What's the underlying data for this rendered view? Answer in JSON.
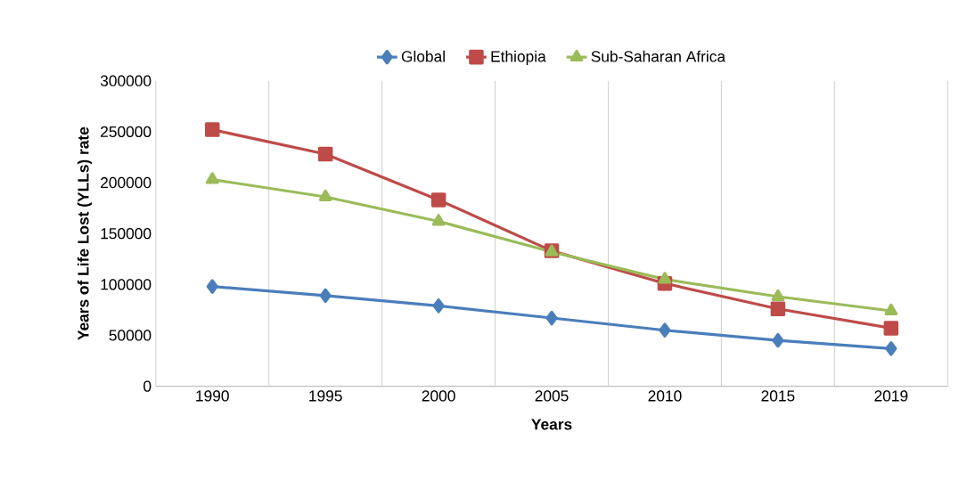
{
  "chart_data": {
    "type": "line",
    "xlabel": "Years",
    "ylabel": "Years of Life Lost (YLLs) rate",
    "categories": [
      "1990",
      "1995",
      "2000",
      "2005",
      "2010",
      "2015",
      "2019"
    ],
    "series": [
      {
        "name": "Global",
        "color": "#4a7ebb",
        "marker": "diamond",
        "values": [
          98000,
          89000,
          79000,
          67000,
          55000,
          45000,
          37000
        ]
      },
      {
        "name": "Ethiopia",
        "color": "#be4b48",
        "marker": "square",
        "values": [
          252000,
          228000,
          183000,
          133000,
          101000,
          76000,
          57000
        ]
      },
      {
        "name": "Sub-Saharan Africa",
        "color": "#9bbb59",
        "marker": "triangle",
        "values": [
          203000,
          186000,
          162000,
          132000,
          105000,
          88000,
          74000
        ]
      }
    ],
    "ylim": [
      0,
      300000
    ],
    "yticks": [
      0,
      50000,
      100000,
      150000,
      200000,
      250000,
      300000
    ],
    "grid": "x",
    "legend": "top",
    "line_style": "solid"
  }
}
